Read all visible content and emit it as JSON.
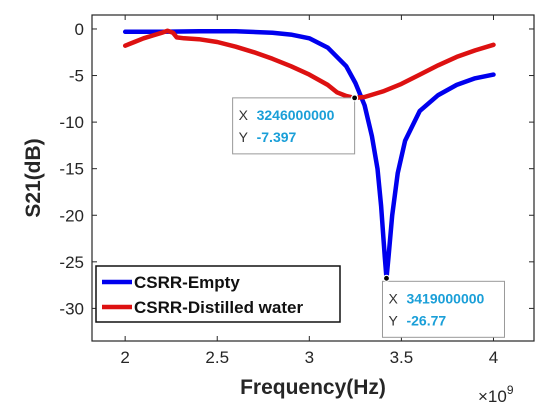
{
  "chart_data": {
    "type": "line",
    "title": "",
    "xlabel": "Frequency(Hz)",
    "ylabel": "S21(dB)",
    "x_exponent": "×10",
    "x_exponent_power": "9",
    "xlim": [
      1.82,
      4.22
    ],
    "ylim": [
      -33.5,
      1.5
    ],
    "xticks": [
      2,
      2.5,
      3,
      3.5,
      4
    ],
    "xtick_labels": [
      "2",
      "2.5",
      "3",
      "3.5",
      "4"
    ],
    "yticks": [
      0,
      -5,
      -10,
      -15,
      -20,
      -25,
      -30
    ],
    "ytick_labels": [
      "0",
      "-5",
      "-10",
      "-15",
      "-20",
      "-25",
      "-30"
    ],
    "grid": false,
    "legend_position": "bottom-left",
    "series": [
      {
        "name": "CSRR-Empty",
        "color": "#0000ee",
        "x": [
          2.0,
          2.2,
          2.4,
          2.6,
          2.8,
          2.9,
          3.0,
          3.1,
          3.2,
          3.25,
          3.3,
          3.34,
          3.37,
          3.39,
          3.41,
          3.419,
          3.43,
          3.45,
          3.48,
          3.52,
          3.6,
          3.7,
          3.8,
          3.9,
          4.0
        ],
        "y": [
          -0.3,
          -0.3,
          -0.25,
          -0.25,
          -0.4,
          -0.6,
          -1.0,
          -2.0,
          -4.0,
          -5.8,
          -8.2,
          -11.5,
          -15.0,
          -19.0,
          -24.5,
          -26.77,
          -24.5,
          -20.0,
          -15.5,
          -12.0,
          -8.8,
          -7.1,
          -6.0,
          -5.3,
          -4.9
        ]
      },
      {
        "name": "CSRR-Distilled water",
        "color": "#dd1111",
        "x": [
          2.0,
          2.05,
          2.1,
          2.15,
          2.2,
          2.23,
          2.26,
          2.28,
          2.32,
          2.4,
          2.5,
          2.6,
          2.7,
          2.8,
          2.9,
          3.0,
          3.1,
          3.15,
          3.2,
          3.246,
          3.3,
          3.4,
          3.5,
          3.6,
          3.7,
          3.8,
          3.9,
          4.0
        ],
        "y": [
          -1.8,
          -1.4,
          -1.0,
          -0.7,
          -0.4,
          -0.2,
          -0.4,
          -0.9,
          -1.0,
          -1.1,
          -1.4,
          -1.9,
          -2.5,
          -3.2,
          -4.0,
          -4.9,
          -6.0,
          -6.8,
          -7.2,
          -7.397,
          -7.3,
          -6.7,
          -5.9,
          -4.9,
          -3.9,
          -3.0,
          -2.3,
          -1.7
        ]
      }
    ],
    "datatips": [
      {
        "x_label": "X",
        "x_value": "3246000000",
        "y_label": "Y",
        "y_value": "-7.397",
        "px": 3.246,
        "py": -7.397
      },
      {
        "x_label": "X",
        "x_value": "3419000000",
        "y_label": "Y",
        "y_value": "-26.77",
        "px": 3.419,
        "py": -26.77
      }
    ]
  }
}
